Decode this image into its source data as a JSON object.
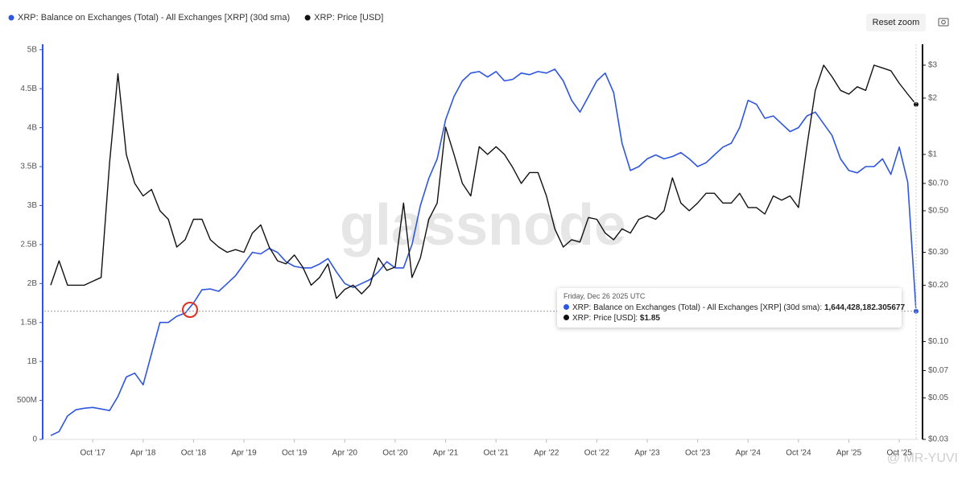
{
  "chart_data": {
    "type": "line",
    "x": [
      "2017-05",
      "2017-06",
      "2017-07",
      "2017-08",
      "2017-09",
      "2017-10",
      "2017-11",
      "2017-12",
      "2018-01",
      "2018-02",
      "2018-03",
      "2018-04",
      "2018-05",
      "2018-06",
      "2018-07",
      "2018-08",
      "2018-09",
      "2018-10",
      "2018-11",
      "2018-12",
      "2019-01",
      "2019-02",
      "2019-03",
      "2019-04",
      "2019-05",
      "2019-06",
      "2019-07",
      "2019-08",
      "2019-09",
      "2019-10",
      "2019-11",
      "2019-12",
      "2020-01",
      "2020-02",
      "2020-03",
      "2020-04",
      "2020-05",
      "2020-06",
      "2020-07",
      "2020-08",
      "2020-09",
      "2020-10",
      "2020-11",
      "2020-12",
      "2021-01",
      "2021-02",
      "2021-03",
      "2021-04",
      "2021-05",
      "2021-06",
      "2021-07",
      "2021-08",
      "2021-09",
      "2021-10",
      "2021-11",
      "2021-12",
      "2022-01",
      "2022-02",
      "2022-03",
      "2022-04",
      "2022-05",
      "2022-06",
      "2022-07",
      "2022-08",
      "2022-09",
      "2022-10",
      "2022-11",
      "2022-12",
      "2023-01",
      "2023-02",
      "2023-03",
      "2023-04",
      "2023-05",
      "2023-06",
      "2023-07",
      "2023-08",
      "2023-09",
      "2023-10",
      "2023-11",
      "2023-12",
      "2024-01",
      "2024-02",
      "2024-03",
      "2024-04",
      "2024-05",
      "2024-06",
      "2024-07",
      "2024-08",
      "2024-09",
      "2024-10",
      "2024-11",
      "2024-12",
      "2025-01",
      "2025-02",
      "2025-03",
      "2025-04",
      "2025-05",
      "2025-06",
      "2025-07",
      "2025-08",
      "2025-09",
      "2025-10",
      "2025-11",
      "2025-12"
    ],
    "series": [
      {
        "name": "XRP: Balance on Exchanges (Total) - All Exchanges [XRP] (30d sma)",
        "color": "#2f56e0",
        "values": [
          0.05,
          0.1,
          0.3,
          0.38,
          0.4,
          0.41,
          0.39,
          0.37,
          0.55,
          0.8,
          0.85,
          0.7,
          1.1,
          1.5,
          1.5,
          1.58,
          1.62,
          1.75,
          1.92,
          1.93,
          1.9,
          2.0,
          2.1,
          2.25,
          2.4,
          2.38,
          2.45,
          2.4,
          2.28,
          2.22,
          2.2,
          2.2,
          2.25,
          2.32,
          2.15,
          2.0,
          1.95,
          2.0,
          2.05,
          2.15,
          2.28,
          2.2,
          2.2,
          2.5,
          3.0,
          3.35,
          3.6,
          4.1,
          4.4,
          4.6,
          4.7,
          4.72,
          4.65,
          4.72,
          4.6,
          4.62,
          4.7,
          4.68,
          4.72,
          4.7,
          4.75,
          4.6,
          4.35,
          4.2,
          4.4,
          4.6,
          4.7,
          4.45,
          3.8,
          3.45,
          3.5,
          3.6,
          3.65,
          3.6,
          3.63,
          3.68,
          3.6,
          3.5,
          3.55,
          3.65,
          3.75,
          3.8,
          4.0,
          4.35,
          4.3,
          4.12,
          4.15,
          4.05,
          3.95,
          4.0,
          4.15,
          4.2,
          4.05,
          3.9,
          3.6,
          3.45,
          3.42,
          3.5,
          3.5,
          3.6,
          3.4,
          3.75,
          3.3,
          1.644428182305677
        ]
      },
      {
        "name": "XRP: Price [USD]",
        "color": "#111111",
        "axis": "y2",
        "values": [
          0.2,
          0.27,
          0.2,
          0.2,
          0.2,
          0.21,
          0.22,
          0.9,
          2.7,
          1.0,
          0.7,
          0.6,
          0.65,
          0.5,
          0.45,
          0.32,
          0.35,
          0.45,
          0.45,
          0.35,
          0.32,
          0.3,
          0.31,
          0.3,
          0.38,
          0.42,
          0.32,
          0.27,
          0.26,
          0.29,
          0.25,
          0.2,
          0.22,
          0.26,
          0.17,
          0.19,
          0.2,
          0.18,
          0.2,
          0.28,
          0.24,
          0.25,
          0.55,
          0.22,
          0.28,
          0.45,
          0.55,
          1.4,
          1.0,
          0.7,
          0.6,
          1.1,
          1.0,
          1.1,
          1.0,
          0.85,
          0.7,
          0.8,
          0.8,
          0.6,
          0.4,
          0.32,
          0.35,
          0.34,
          0.46,
          0.45,
          0.38,
          0.35,
          0.4,
          0.38,
          0.45,
          0.47,
          0.45,
          0.5,
          0.75,
          0.55,
          0.5,
          0.55,
          0.62,
          0.62,
          0.55,
          0.55,
          0.62,
          0.52,
          0.52,
          0.48,
          0.6,
          0.57,
          0.6,
          0.52,
          1.1,
          2.2,
          3.0,
          2.6,
          2.2,
          2.1,
          2.3,
          2.2,
          3.0,
          2.9,
          2.8,
          2.4,
          2.1,
          1.85
        ]
      }
    ],
    "xlim": [
      "2017-05",
      "2025-12"
    ],
    "xticks": [
      {
        "value": "2017-10",
        "label": "Oct '17"
      },
      {
        "value": "2018-04",
        "label": "Apr '18"
      },
      {
        "value": "2018-10",
        "label": "Oct '18"
      },
      {
        "value": "2019-04",
        "label": "Apr '19"
      },
      {
        "value": "2019-10",
        "label": "Oct '19"
      },
      {
        "value": "2020-04",
        "label": "Apr '20"
      },
      {
        "value": "2020-10",
        "label": "Oct '20"
      },
      {
        "value": "2021-04",
        "label": "Apr '21"
      },
      {
        "value": "2021-10",
        "label": "Oct '21"
      },
      {
        "value": "2022-04",
        "label": "Apr '22"
      },
      {
        "value": "2022-10",
        "label": "Oct '22"
      },
      {
        "value": "2023-04",
        "label": "Apr '23"
      },
      {
        "value": "2023-10",
        "label": "Oct '23"
      },
      {
        "value": "2024-04",
        "label": "Apr '24"
      },
      {
        "value": "2024-10",
        "label": "Oct '24"
      },
      {
        "value": "2025-04",
        "label": "Apr '25"
      },
      {
        "value": "2025-10",
        "label": "Oct '25"
      }
    ],
    "ylim": [
      0,
      5.07
    ],
    "yticks": [
      0,
      {
        "value": 0.5,
        "label": "500M"
      },
      {
        "value": 1,
        "label": "1B"
      },
      {
        "value": 1.5,
        "label": "1.5B"
      },
      {
        "value": 2,
        "label": "2B"
      },
      {
        "value": 2.5,
        "label": "2.5B"
      },
      {
        "value": 3,
        "label": "3B"
      },
      {
        "value": 3.5,
        "label": "3.5B"
      },
      {
        "value": 4,
        "label": "4B"
      },
      {
        "value": 4.5,
        "label": "4.5B"
      },
      {
        "value": 5,
        "label": "5B"
      }
    ],
    "y2lim": [
      0.03,
      3.88
    ],
    "y2scale": "log",
    "y2ticks": [
      {
        "value": 0.03,
        "label": "$0.03"
      },
      {
        "value": 0.05,
        "label": "$0.05"
      },
      {
        "value": 0.07,
        "label": "$0.07"
      },
      {
        "value": 0.1,
        "label": "$0.10"
      },
      {
        "value": 0.2,
        "label": "$0.20"
      },
      {
        "value": 0.3,
        "label": "$0.30"
      },
      {
        "value": 0.5,
        "label": "$0.50"
      },
      {
        "value": 0.7,
        "label": "$0.70"
      },
      {
        "value": 1,
        "label": "$1"
      },
      {
        "value": 2,
        "label": "$2"
      },
      {
        "value": 3,
        "label": "$3"
      }
    ],
    "tooltip": {
      "title": "Friday, Dec 26 2025 UTC",
      "labels": [
        "1,644,428,182.305677",
        "$1.85"
      ]
    },
    "reset_button": "Reset zoom",
    "watermark": "glassnode",
    "credit": "@ MR-YUVI"
  }
}
